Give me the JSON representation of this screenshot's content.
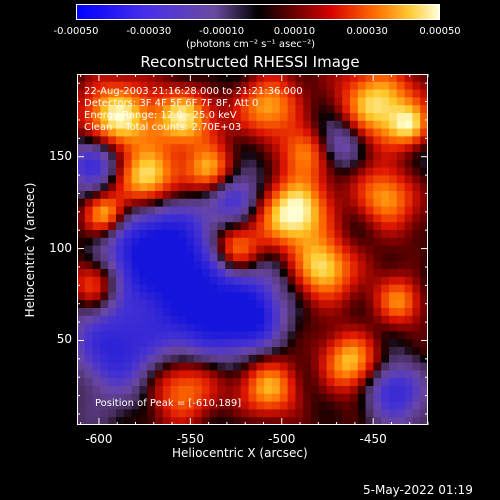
{
  "colorbar": {
    "tick_labels": [
      "-0.00050",
      "-0.00030",
      "-0.00010",
      "0.00010",
      "0.00030",
      "0.00050"
    ],
    "units": "(photons cm⁻² s⁻¹ asec⁻²)"
  },
  "title": "Reconstructed RHESSI Image",
  "annotations": {
    "time_range": "22-Aug-2003 21:16:28.000 to 21:21:36.000",
    "detectors": "Detectors: 3F 4F 5F 6F 7F 8F, Att 0",
    "energy_range": "Energy Range: 12.0 - 25.0 keV",
    "algorithm": "Clean    Total counts: 2.70E+03",
    "peak": "Position of Peak = [-610,189]"
  },
  "axes": {
    "xlabel": "Heliocentric X (arcsec)",
    "ylabel": "Heliocentric Y (arcsec)",
    "xticks": [
      "-600",
      "-550",
      "-500",
      "-450"
    ],
    "yticks": [
      "50",
      "100",
      "150"
    ]
  },
  "footer": {
    "date": "5-May-2022 01:19"
  },
  "chart_data": {
    "type": "heatmap",
    "title": "Reconstructed RHESSI Image",
    "xlabel": "Heliocentric X (arcsec)",
    "ylabel": "Heliocentric Y (arcsec)",
    "xlim": [
      -612,
      -420
    ],
    "ylim": [
      4,
      195
    ],
    "xticks": [
      -600,
      -550,
      -500,
      -450
    ],
    "yticks": [
      50,
      100,
      150
    ],
    "colorbar_range": [
      -0.0005,
      0.0005
    ],
    "colorbar_ticks": [
      -0.0005,
      -0.0003,
      -0.0001,
      0.0001,
      0.0003,
      0.0005
    ],
    "peak_position": [
      -610,
      189
    ],
    "grid": false,
    "colors": {
      "background": "#000000",
      "foreground": "#ffffff",
      "colormap": [
        "#0000ff",
        "#7b3fe0",
        "#5a3d8c",
        "#000000",
        "#8b0000",
        "#ff3300",
        "#ffaa00",
        "#ffffcc"
      ]
    }
  }
}
